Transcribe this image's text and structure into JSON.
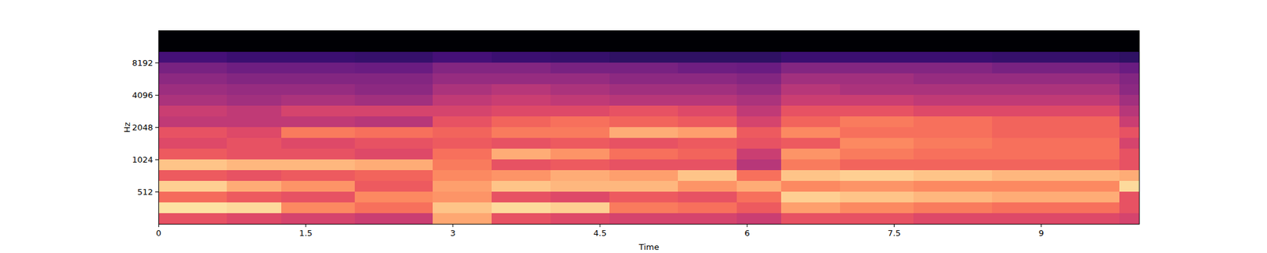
{
  "chart_data": {
    "type": "heatmap",
    "x_label": "Time",
    "y_label": "Hz",
    "xlim": [
      0,
      10
    ],
    "ylim": [
      256,
      16384
    ],
    "log": "y",
    "xticks": [
      0,
      1.5,
      3,
      4.5,
      6,
      7.5,
      9
    ],
    "yticks": [
      512,
      1024,
      2048,
      4096,
      8192
    ],
    "color": "magma",
    "color_range": [
      -80,
      0
    ],
    "time_edges": [
      0,
      0.7,
      1.25,
      2.0,
      2.8,
      3.4,
      4.0,
      4.6,
      5.3,
      5.9,
      6.35,
      6.95,
      7.7,
      8.5,
      9.8,
      10
    ],
    "freq_edges": [
      256,
      323,
      406,
      512,
      645,
      813,
      1024,
      1290,
      1625,
      2048,
      2580,
      3251,
      4096,
      5161,
      6502,
      8192,
      10321,
      13004,
      16384
    ],
    "cells": [
      [
        -30,
        -5,
        -25,
        -8,
        -28,
        -10,
        -28,
        -32,
        -30,
        -38,
        -36,
        -42,
        -45,
        -48,
        -52,
        -62,
        -80,
        -80
      ],
      [
        -32,
        -6,
        -28,
        -14,
        -30,
        -12,
        -30,
        -30,
        -32,
        -38,
        -38,
        -44,
        -46,
        -50,
        -54,
        -64,
        -80,
        -80
      ],
      [
        -34,
        -20,
        -30,
        -18,
        -28,
        -12,
        -30,
        -32,
        -22,
        -38,
        -34,
        -42,
        -46,
        -50,
        -54,
        -64,
        -80,
        -80
      ],
      [
        -36,
        -24,
        -20,
        -28,
        -26,
        -14,
        -32,
        -30,
        -24,
        -40,
        -34,
        -44,
        -48,
        -50,
        -55,
        -65,
        -80,
        -80
      ],
      [
        -15,
        -10,
        -18,
        -16,
        -20,
        -22,
        -24,
        -28,
        -26,
        -30,
        -34,
        -38,
        -42,
        -46,
        -50,
        -62,
        -80,
        -80
      ],
      [
        -30,
        -6,
        -30,
        -10,
        -18,
        -30,
        -14,
        -30,
        -22,
        -26,
        -32,
        -36,
        -40,
        -46,
        -50,
        -64,
        -80,
        -80
      ],
      [
        -32,
        -8,
        -32,
        -12,
        -14,
        -28,
        -18,
        -28,
        -22,
        -24,
        -32,
        -38,
        -42,
        -46,
        -52,
        -65,
        -80,
        -80
      ],
      [
        -34,
        -22,
        -28,
        -12,
        -16,
        -30,
        -24,
        -30,
        -14,
        -26,
        -30,
        -40,
        -44,
        -48,
        -52,
        -66,
        -80,
        -80
      ],
      [
        -34,
        -24,
        -30,
        -18,
        -10,
        -30,
        -26,
        -28,
        -16,
        -28,
        -32,
        -40,
        -44,
        -48,
        -54,
        -66,
        -80,
        -80
      ],
      [
        -36,
        -28,
        -24,
        -14,
        -24,
        -40,
        -36,
        -30,
        -28,
        -34,
        -38,
        -42,
        -46,
        -50,
        -55,
        -66,
        -80,
        -80
      ],
      [
        -30,
        -16,
        -8,
        -20,
        -10,
        -22,
        -18,
        -28,
        -20,
        -26,
        -30,
        -36,
        -40,
        -44,
        -50,
        -64,
        -80,
        -80
      ],
      [
        -30,
        -20,
        -10,
        -18,
        -8,
        -26,
        -22,
        -20,
        -24,
        -22,
        -30,
        -36,
        -42,
        -44,
        -50,
        -64,
        -80,
        -80
      ],
      [
        -32,
        -22,
        -12,
        -20,
        -10,
        -26,
        -24,
        -22,
        -24,
        -24,
        -32,
        -38,
        -42,
        -46,
        -50,
        -64,
        -80,
        -80
      ],
      [
        -32,
        -24,
        -14,
        -20,
        -12,
        -26,
        -24,
        -24,
        -26,
        -26,
        -32,
        -38,
        -42,
        -46,
        -52,
        -65,
        -80,
        -80
      ],
      [
        -34,
        -30,
        -30,
        -6,
        -14,
        -30,
        -30,
        -34,
        -30,
        -36,
        -40,
        -44,
        -48,
        -50,
        -55,
        -66,
        -80,
        -80
      ]
    ]
  }
}
